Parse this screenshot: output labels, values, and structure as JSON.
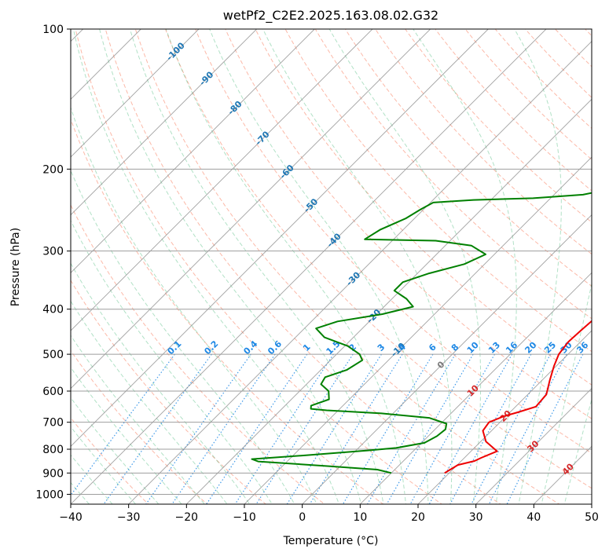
{
  "chart_data": {
    "type": "line",
    "title": "wetPf2_C2E2.2025.163.08.02.G32",
    "xlabel": "Temperature (°C)",
    "ylabel": "Pressure (hPa)",
    "xlim": [
      -40,
      50
    ],
    "ylim": [
      1050,
      100
    ],
    "y_scale": "log",
    "grid": true,
    "x_ticks": [
      -40,
      -30,
      -20,
      -10,
      0,
      10,
      20,
      30,
      40,
      50
    ],
    "y_ticks": [
      100,
      200,
      300,
      400,
      500,
      600,
      700,
      800,
      900,
      1000
    ],
    "colors": {
      "temperature": "#ee0000",
      "dewpoint": "#008000",
      "dry_adiabat": "#fa8060",
      "moist_adiabat": "#3cb371",
      "isotherm": "#8a8a8a",
      "mixing_ratio": "#1e88e5",
      "isotherm_label": "#1f77b4",
      "warm_label": "#d62728"
    },
    "series": [
      {
        "role": "temperature",
        "points": [
          [
            19.2,
            900
          ],
          [
            19.6,
            885
          ],
          [
            20.1,
            865
          ],
          [
            22.3,
            848
          ],
          [
            22.9,
            835
          ],
          [
            24.5,
            808
          ],
          [
            20.9,
            770
          ],
          [
            18.5,
            730
          ],
          [
            18.1,
            700
          ],
          [
            19.6,
            680
          ],
          [
            21.5,
            665
          ],
          [
            23.5,
            648
          ],
          [
            23.2,
            610
          ],
          [
            21.4,
            570
          ],
          [
            19.6,
            530
          ],
          [
            18.4,
            500
          ],
          [
            17.9,
            470
          ],
          [
            18.1,
            445
          ],
          [
            18.4,
            420
          ],
          [
            17.8,
            395
          ],
          [
            16.7,
            365
          ],
          [
            14.7,
            335
          ],
          [
            12.6,
            310
          ],
          [
            11.3,
            290
          ],
          [
            11.3,
            272
          ],
          [
            11.1,
            255
          ],
          [
            9.8,
            240
          ],
          [
            7.4,
            225
          ],
          [
            4.4,
            212
          ],
          [
            0.3,
            198
          ],
          [
            -3.2,
            185
          ],
          [
            -5.7,
            170
          ],
          [
            -7.7,
            152
          ],
          [
            -8.6,
            142
          ],
          [
            -9.0,
            138
          ],
          [
            -8.7,
            130
          ],
          [
            -7.1,
            120
          ],
          [
            -5.8,
            112
          ],
          [
            -5.5,
            105
          ],
          [
            -4.9,
            100
          ]
        ]
      },
      {
        "role": "dewpoint",
        "points": [
          [
            10.0,
            900
          ],
          [
            7.0,
            885
          ],
          [
            -2.0,
            870
          ],
          [
            -15.0,
            850
          ],
          [
            -16.5,
            840
          ],
          [
            -8.0,
            825
          ],
          [
            -3.0,
            815
          ],
          [
            2.0,
            805
          ],
          [
            6.5,
            795
          ],
          [
            10.5,
            775
          ],
          [
            11.5,
            750
          ],
          [
            11.8,
            725
          ],
          [
            11.0,
            705
          ],
          [
            7.0,
            685
          ],
          [
            -2.0,
            670
          ],
          [
            -12.0,
            660
          ],
          [
            -15.0,
            655
          ],
          [
            -15.5,
            645
          ],
          [
            -13.5,
            625
          ],
          [
            -15.0,
            600
          ],
          [
            -17.5,
            580
          ],
          [
            -18.0,
            560
          ],
          [
            -15.5,
            540
          ],
          [
            -14.5,
            515
          ],
          [
            -16.0,
            500
          ],
          [
            -19.5,
            480
          ],
          [
            -25.0,
            460
          ],
          [
            -28.0,
            440
          ],
          [
            -25.5,
            425
          ],
          [
            -19.0,
            410
          ],
          [
            -15.0,
            395
          ],
          [
            -17.5,
            380
          ],
          [
            -21.0,
            365
          ],
          [
            -21.0,
            350
          ],
          [
            -18.0,
            335
          ],
          [
            -13.5,
            320
          ],
          [
            -11.5,
            305
          ],
          [
            -15.5,
            292
          ],
          [
            -22.5,
            285
          ],
          [
            -35.0,
            283
          ],
          [
            -34.0,
            270
          ],
          [
            -31.5,
            255
          ],
          [
            -30.5,
            244
          ],
          [
            -29.5,
            236
          ],
          [
            -23.0,
            233
          ],
          [
            -13.0,
            231
          ],
          [
            -5.0,
            227
          ],
          [
            -2.0,
            222
          ],
          [
            0.0,
            213
          ],
          [
            1.0,
            200
          ],
          [
            0.5,
            188
          ],
          [
            0.5,
            178
          ],
          [
            0.8,
            168
          ],
          [
            0.5,
            158
          ],
          [
            -0.5,
            150
          ],
          [
            -0.5,
            142
          ],
          [
            -0.8,
            135
          ],
          [
            0.0,
            128
          ],
          [
            0.3,
            121
          ],
          [
            -0.3,
            117
          ],
          [
            -1.0,
            113
          ],
          [
            -0.5,
            110
          ],
          [
            -1.0,
            106
          ],
          [
            -1.0,
            102
          ],
          [
            -0.5,
            100
          ]
        ]
      }
    ],
    "annotations": {
      "isotherm_labels": [
        "-100",
        "-90",
        "-80",
        "-70",
        "-60",
        "-50",
        "-40",
        "-30",
        "-20",
        "-10",
        "0",
        "10",
        "20",
        "30",
        "40"
      ],
      "mixing_ratio_labels": [
        "0.1",
        "0.2",
        "0.4",
        "0.6",
        "1",
        "1.5",
        "2",
        "3",
        "4",
        "6",
        "8",
        "10",
        "13",
        "16",
        "20",
        "25",
        "30",
        "36"
      ]
    }
  }
}
